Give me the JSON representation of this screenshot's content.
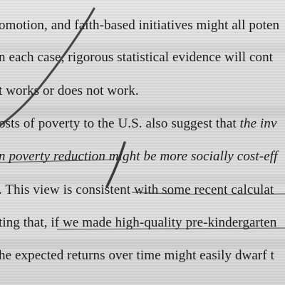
{
  "document": {
    "lines": [
      "omotion, and faith-based initiatives might all poten",
      "n each case, rigorous statistical evidence will cont",
      "t works or does not work.",
      "osts of poverty to the U.S. also suggest that ",
      "n poverty reduction might be more socially cost-eff",
      ". This view is consistent with some recent calculat",
      "ting that, if we made high-quality pre-kindergarten",
      "he expected returns over time might easily dwarf t"
    ],
    "line4_italic": "the inv"
  },
  "colors": {
    "paper": "#dcdcdc",
    "ink": "#1a1a1a",
    "pen": "#2a2a2a"
  }
}
